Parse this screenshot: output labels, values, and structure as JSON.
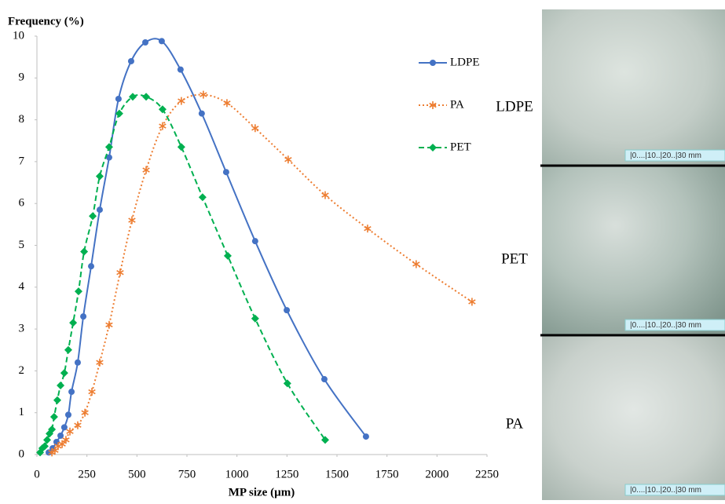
{
  "chart_data": {
    "type": "line",
    "y_label": "Frequency (%)",
    "x_label": "MP size (µm)",
    "xlim": [
      0,
      2250
    ],
    "ylim": [
      0,
      10
    ],
    "xticks": [
      0,
      250,
      500,
      750,
      1000,
      1250,
      1500,
      1750,
      2000,
      2250
    ],
    "yticks": [
      0,
      1,
      2,
      3,
      4,
      5,
      6,
      7,
      8,
      9,
      10
    ],
    "legend": "upper right",
    "grid": false,
    "series": [
      {
        "name": "LDPE",
        "color": "#4472c4",
        "marker": "circle",
        "linestyle": "solid",
        "x": [
          59,
          79,
          98,
          118,
          137,
          157,
          173,
          204,
          232,
          271,
          314,
          361,
          408,
          471,
          542,
          624,
          718,
          824,
          946,
          1091,
          1249,
          1437,
          1645
        ],
        "values": [
          0.05,
          0.15,
          0.3,
          0.45,
          0.65,
          0.95,
          1.5,
          2.2,
          3.3,
          4.5,
          5.85,
          7.1,
          8.5,
          9.4,
          9.85,
          9.88,
          9.2,
          8.15,
          6.75,
          5.1,
          3.45,
          1.8,
          0.43
        ]
      },
      {
        "name": "PA",
        "color": "#ed7d31",
        "marker": "asterisk",
        "linestyle": "dotted",
        "x": [
          75,
          90,
          106,
          126,
          145,
          165,
          204,
          240,
          275,
          314,
          361,
          416,
          475,
          546,
          628,
          722,
          832,
          950,
          1091,
          1256,
          1441,
          1653,
          1896,
          2175
        ],
        "values": [
          0.05,
          0.1,
          0.2,
          0.25,
          0.35,
          0.55,
          0.7,
          1.0,
          1.5,
          2.2,
          3.1,
          4.35,
          5.6,
          6.8,
          7.85,
          8.45,
          8.6,
          8.4,
          7.8,
          7.05,
          6.2,
          5.4,
          4.55,
          3.65
        ]
      },
      {
        "name": "PET",
        "color": "#00b050",
        "marker": "diamond",
        "linestyle": "dashed",
        "x": [
          16,
          27,
          39,
          51,
          63,
          75,
          86,
          102,
          118,
          137,
          157,
          181,
          208,
          236,
          279,
          314,
          361,
          412,
          479,
          546,
          628,
          722,
          828,
          954,
          1091,
          1252,
          1441
        ],
        "values": [
          0.05,
          0.15,
          0.2,
          0.35,
          0.5,
          0.6,
          0.9,
          1.3,
          1.65,
          1.95,
          2.5,
          3.15,
          3.9,
          4.85,
          5.7,
          6.65,
          7.35,
          8.15,
          8.55,
          8.55,
          8.25,
          7.35,
          6.15,
          4.75,
          3.25,
          1.7,
          0.35
        ]
      }
    ]
  },
  "photos": [
    {
      "label": "LDPE",
      "scale": "|0....|10..|20..|30 mm"
    },
    {
      "label": "PET",
      "scale": "|0....|10..|20..|30 mm"
    },
    {
      "label": "PA",
      "scale": "|0....|10..|20..|30 mm"
    }
  ]
}
